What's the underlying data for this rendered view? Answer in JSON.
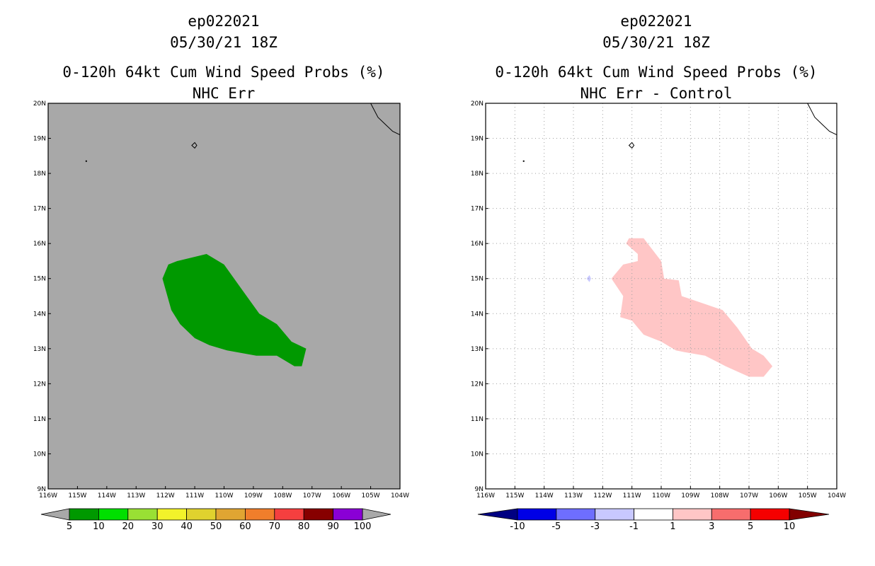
{
  "chart_data": [
    {
      "type": "map",
      "storm_id": "ep022021",
      "datetime": "05/30/21 18Z",
      "title": "0-120h 64kt Cum Wind Speed Probs (%)",
      "subtitle": "NHC Err",
      "lon_range": [
        -116,
        -104
      ],
      "lat_range": [
        9,
        20
      ],
      "xticks": [
        "116W",
        "115W",
        "114W",
        "113W",
        "112W",
        "111W",
        "110W",
        "109W",
        "108W",
        "107W",
        "106W",
        "105W",
        "104W"
      ],
      "yticks": [
        "9N",
        "10N",
        "11N",
        "12N",
        "13N",
        "14N",
        "15N",
        "16N",
        "17N",
        "18N",
        "19N",
        "20N"
      ],
      "gridlines": false,
      "background": "#a8a8a8",
      "contours": [
        {
          "level": "5-10%",
          "color": "#009900",
          "polygon": [
            [
              -111.6,
              15.5
            ],
            [
              -110.6,
              15.7
            ],
            [
              -110.0,
              15.4
            ],
            [
              -109.4,
              14.7
            ],
            [
              -108.8,
              14.0
            ],
            [
              -108.2,
              13.7
            ],
            [
              -107.7,
              13.2
            ],
            [
              -107.2,
              13.0
            ],
            [
              -107.35,
              12.5
            ],
            [
              -107.6,
              12.5
            ],
            [
              -108.2,
              12.8
            ],
            [
              -108.9,
              12.8
            ],
            [
              -109.9,
              12.95
            ],
            [
              -110.5,
              13.1
            ],
            [
              -111.0,
              13.3
            ],
            [
              -111.5,
              13.7
            ],
            [
              -111.8,
              14.1
            ],
            [
              -112.1,
              15.0
            ],
            [
              -111.9,
              15.4
            ]
          ]
        }
      ],
      "colorbar": {
        "labels": [
          "5",
          "10",
          "20",
          "30",
          "40",
          "50",
          "60",
          "70",
          "80",
          "90",
          "100"
        ],
        "colors": [
          "#009900",
          "#00e000",
          "#99e034",
          "#f2f22a",
          "#e0d22e",
          "#e0a532",
          "#f07e2b",
          "#f53f3f",
          "#870000",
          "#8a00d6"
        ],
        "under_color": "#a8a8a8",
        "over_color": "#a8a8a8"
      }
    },
    {
      "type": "map",
      "storm_id": "ep022021",
      "datetime": "05/30/21 18Z",
      "title": "0-120h 64kt Cum Wind Speed Probs (%)",
      "subtitle": "NHC Err - Control",
      "lon_range": [
        -116,
        -104
      ],
      "lat_range": [
        9,
        20
      ],
      "xticks": [
        "116W",
        "115W",
        "114W",
        "113W",
        "112W",
        "111W",
        "110W",
        "109W",
        "108W",
        "107W",
        "106W",
        "105W",
        "104W"
      ],
      "yticks": [
        "9N",
        "10N",
        "11N",
        "12N",
        "13N",
        "14N",
        "15N",
        "16N",
        "17N",
        "18N",
        "19N",
        "20N"
      ],
      "gridlines": true,
      "background": "#ffffff",
      "contours": [
        {
          "level": "1 to 3",
          "color": "#ffc6c6",
          "polygon": [
            [
              -111.1,
              16.15
            ],
            [
              -110.6,
              16.15
            ],
            [
              -110.0,
              15.5
            ],
            [
              -109.9,
              15.0
            ],
            [
              -109.4,
              14.95
            ],
            [
              -109.3,
              14.5
            ],
            [
              -108.6,
              14.3
            ],
            [
              -107.9,
              14.1
            ],
            [
              -107.4,
              13.6
            ],
            [
              -106.9,
              13.0
            ],
            [
              -106.5,
              12.8
            ],
            [
              -106.2,
              12.5
            ],
            [
              -106.5,
              12.2
            ],
            [
              -107.0,
              12.2
            ],
            [
              -107.8,
              12.5
            ],
            [
              -108.5,
              12.8
            ],
            [
              -109.2,
              12.9
            ],
            [
              -109.5,
              12.95
            ],
            [
              -110.0,
              13.2
            ],
            [
              -110.6,
              13.4
            ],
            [
              -111.0,
              13.8
            ],
            [
              -111.4,
              13.9
            ],
            [
              -111.3,
              14.5
            ],
            [
              -111.7,
              15.0
            ],
            [
              -111.3,
              15.4
            ],
            [
              -110.8,
              15.5
            ],
            [
              -110.8,
              15.7
            ],
            [
              -111.2,
              16.0
            ]
          ]
        },
        {
          "level": "-3 to -1",
          "color": "#c8c8ff",
          "polygon": [
            [
              -112.55,
              15.0
            ],
            [
              -112.45,
              15.1
            ],
            [
              -112.4,
              15.0
            ],
            [
              -112.45,
              14.9
            ]
          ]
        }
      ],
      "colorbar": {
        "labels": [
          "-10",
          "-5",
          "-3",
          "-1",
          "1",
          "3",
          "5",
          "10"
        ],
        "colors": [
          "#0000e6",
          "#6e6eff",
          "#c8c8ff",
          "#ffffff",
          "#ffc6c6",
          "#f76d6d",
          "#f50000"
        ],
        "under_color": "#000082",
        "over_color": "#820000"
      }
    }
  ]
}
